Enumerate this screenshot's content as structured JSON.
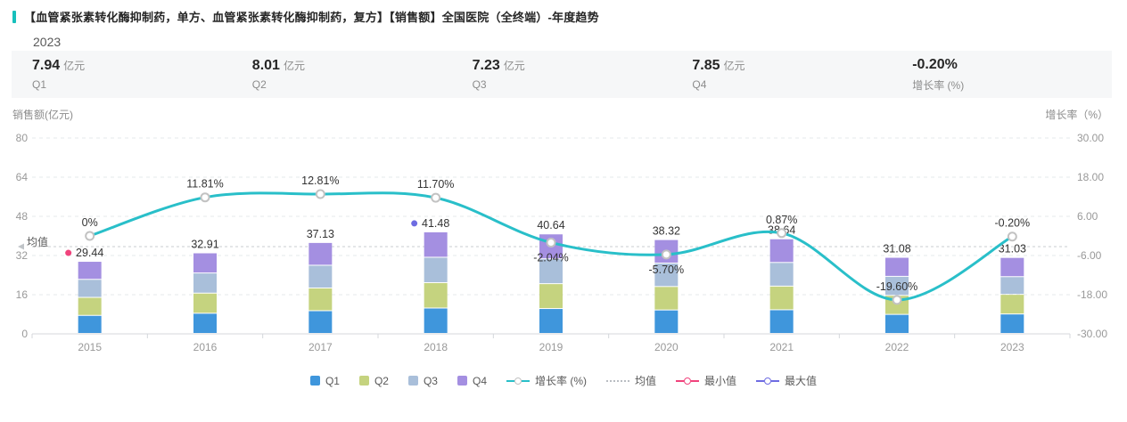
{
  "header": {
    "title": "【血管紧张素转化酶抑制药，单方、血管紧张素转化酶抑制药，复方】【销售额】全国医院（全终端）-年度趋势",
    "year_filter": "2023"
  },
  "summary_cards": [
    {
      "value": "7.94",
      "unit": "亿元",
      "label": "Q1"
    },
    {
      "value": "8.01",
      "unit": "亿元",
      "label": "Q2"
    },
    {
      "value": "7.23",
      "unit": "亿元",
      "label": "Q3"
    },
    {
      "value": "7.85",
      "unit": "亿元",
      "label": "Q4"
    },
    {
      "value": "-0.20%",
      "unit": "",
      "label": "增长率 (%)"
    }
  ],
  "chart_data": {
    "type": "bar",
    "subtype": "stacked-quarters-with-growth-line",
    "categories": [
      "2015",
      "2016",
      "2017",
      "2018",
      "2019",
      "2020",
      "2021",
      "2022",
      "2023"
    ],
    "bar_series": [
      {
        "name": "Q1",
        "color": "#3F96DC",
        "values": [
          7.36,
          8.23,
          9.28,
          10.37,
          10.16,
          9.58,
          9.66,
          7.77,
          7.94
        ]
      },
      {
        "name": "Q2",
        "color": "#C5D37F",
        "values": [
          7.36,
          8.23,
          9.28,
          10.37,
          10.16,
          9.58,
          9.66,
          7.77,
          8.01
        ]
      },
      {
        "name": "Q3",
        "color": "#A9BFDA",
        "values": [
          7.36,
          8.23,
          9.28,
          10.37,
          10.16,
          9.58,
          9.66,
          7.77,
          7.23
        ]
      },
      {
        "name": "Q4",
        "color": "#A48FE1",
        "values": [
          7.36,
          8.22,
          9.29,
          10.37,
          10.16,
          9.58,
          9.66,
          7.77,
          7.85
        ]
      }
    ],
    "bar_totals": [
      29.44,
      32.91,
      37.13,
      41.48,
      40.64,
      38.32,
      38.64,
      31.08,
      31.03
    ],
    "total_labels": [
      "29.44",
      "32.91",
      "37.13",
      "41.48",
      "40.64",
      "38.32",
      "38.64",
      "31.08",
      "31.03"
    ],
    "line_series": {
      "name": "增长率 (%)",
      "color": "#29BFC9",
      "values": [
        0,
        11.81,
        12.81,
        11.7,
        -2.04,
        -5.7,
        0.87,
        -19.6,
        -0.2
      ]
    },
    "growth_labels": [
      "0%",
      "11.81%",
      "12.81%",
      "11.70%",
      "-2.04%",
      "-5.70%",
      "0.87%",
      "-19.60%",
      "-0.20%"
    ],
    "growth_label_position": [
      "top",
      "top",
      "top",
      "top",
      "bottom",
      "bottom",
      "top",
      "top",
      "top"
    ],
    "mean": {
      "label": "均值",
      "value": 35.63
    },
    "min_point": {
      "label": "最小值",
      "category": "2015",
      "value": 29.44,
      "color": "#F0437C"
    },
    "max_point": {
      "label": "最大值",
      "category": "2018",
      "value": 41.48,
      "color": "#6E6CE2"
    },
    "left_axis": {
      "name": "销售额(亿元)",
      "min": 0,
      "max": 80,
      "tick_step": 16,
      "ticks": [
        "0",
        "16",
        "32",
        "48",
        "64",
        "80"
      ]
    },
    "right_axis": {
      "name": "增长率（%）",
      "min": -30,
      "max": 30,
      "ticks": [
        "-30.00",
        "-18.00",
        "-6.00",
        "6.00",
        "18.00",
        "30.00"
      ]
    },
    "grid": "horizontal-dashed",
    "legend_position": "bottom-center"
  },
  "legend": [
    {
      "id": "q1",
      "label": "Q1",
      "swatch": "square",
      "color": "#3F96DC"
    },
    {
      "id": "q2",
      "label": "Q2",
      "swatch": "square",
      "color": "#C5D37F"
    },
    {
      "id": "q3",
      "label": "Q3",
      "swatch": "square",
      "color": "#A9BFDA"
    },
    {
      "id": "q4",
      "label": "Q4",
      "swatch": "square",
      "color": "#A48FE1"
    },
    {
      "id": "growth-rate",
      "label": "增长率 (%)",
      "swatch": "line-dot",
      "color": "#29BFC9",
      "dot_color": "#C2C2C2"
    },
    {
      "id": "mean",
      "label": "均值",
      "swatch": "dotted",
      "color": "#B9BDC2"
    },
    {
      "id": "min-value",
      "label": "最小值",
      "swatch": "line-dot",
      "color": "#F0437C",
      "dot_color": "#F0437C"
    },
    {
      "id": "max-value",
      "label": "最大值",
      "swatch": "line-dot",
      "color": "#6E6CE2",
      "dot_color": "#6E6CE2"
    }
  ]
}
